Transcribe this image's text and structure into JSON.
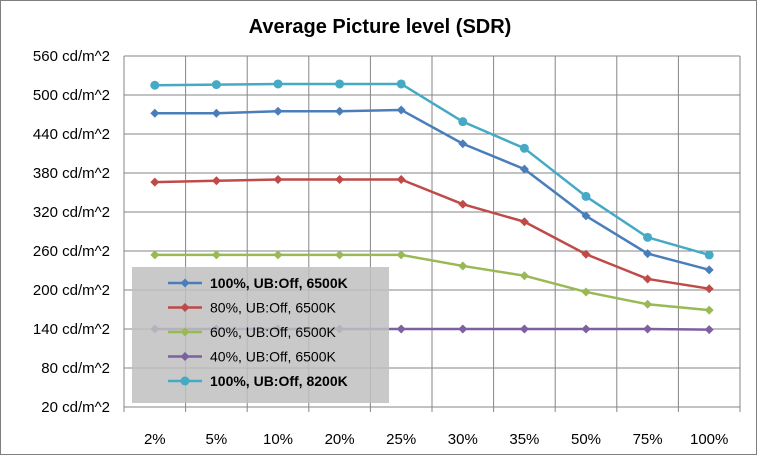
{
  "chart_data": {
    "type": "line",
    "title": "Average Picture level (SDR)",
    "xlabel": "",
    "ylabel": "",
    "categories": [
      "2%",
      "5%",
      "10%",
      "20%",
      "25%",
      "30%",
      "35%",
      "50%",
      "75%",
      "100%"
    ],
    "y_unit_suffix": " cd/m^2",
    "ylim": [
      20,
      560
    ],
    "yticks": [
      20,
      80,
      140,
      200,
      260,
      320,
      380,
      440,
      500,
      560
    ],
    "ytick_labels": [
      "20 cd/m^2",
      "80 cd/m^2",
      "140 cd/m^2",
      "200 cd/m^2",
      "260 cd/m^2",
      "320 cd/m^2",
      "380 cd/m^2",
      "440 cd/m^2",
      "500 cd/m^2",
      "560 cd/m^2"
    ],
    "grid": true,
    "legend_position": "bottom-left",
    "series": [
      {
        "name": "100%, UB:Off, 6500K",
        "color": "#4a7ebb",
        "marker": "diamond",
        "bold": true,
        "values": [
          472,
          472,
          475,
          475,
          477,
          425,
          386,
          314,
          256,
          231
        ]
      },
      {
        "name": "80%, UB:Off, 6500K",
        "color": "#be4b48",
        "marker": "diamond",
        "bold": false,
        "values": [
          366,
          368,
          370,
          370,
          370,
          332,
          305,
          255,
          217,
          202
        ]
      },
      {
        "name": "60%, UB:Off, 6500K",
        "color": "#98b954",
        "marker": "diamond",
        "bold": false,
        "values": [
          254,
          254,
          254,
          254,
          254,
          237,
          222,
          197,
          178,
          169
        ]
      },
      {
        "name": "40%, UB:Off, 6500K",
        "color": "#7d60a0",
        "marker": "diamond",
        "bold": false,
        "values": [
          140,
          140,
          140,
          140,
          140,
          140,
          140,
          140,
          140,
          139
        ]
      },
      {
        "name": "100%, UB:Off, 8200K",
        "color": "#46aac5",
        "marker": "circle",
        "bold": true,
        "values": [
          515,
          516,
          517,
          517,
          517,
          459,
          418,
          344,
          281,
          254
        ]
      }
    ]
  }
}
